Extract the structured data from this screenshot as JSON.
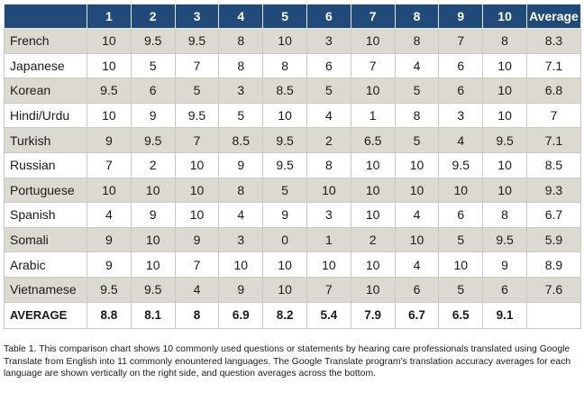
{
  "table": {
    "headers": [
      "",
      "1",
      "2",
      "3",
      "4",
      "5",
      "6",
      "7",
      "8",
      "9",
      "10",
      "Average"
    ],
    "rows": [
      {
        "language": "French",
        "scores": [
          "10",
          "9.5",
          "9.5",
          "8",
          "10",
          "3",
          "10",
          "8",
          "7",
          "8"
        ],
        "average": "8.3"
      },
      {
        "language": "Japanese",
        "scores": [
          "10",
          "5",
          "7",
          "8",
          "8",
          "6",
          "7",
          "4",
          "6",
          "10"
        ],
        "average": "7.1"
      },
      {
        "language": "Korean",
        "scores": [
          "9.5",
          "6",
          "5",
          "3",
          "8.5",
          "5",
          "10",
          "5",
          "6",
          "10"
        ],
        "average": "6.8"
      },
      {
        "language": "Hindi/Urdu",
        "scores": [
          "10",
          "9",
          "9.5",
          "5",
          "10",
          "4",
          "1",
          "8",
          "3",
          "10"
        ],
        "average": "7"
      },
      {
        "language": "Turkish",
        "scores": [
          "9",
          "9.5",
          "7",
          "8.5",
          "9.5",
          "2",
          "6.5",
          "5",
          "4",
          "9.5"
        ],
        "average": "7.1"
      },
      {
        "language": "Russian",
        "scores": [
          "7",
          "2",
          "10",
          "9",
          "9.5",
          "8",
          "10",
          "10",
          "9.5",
          "10"
        ],
        "average": "8.5"
      },
      {
        "language": "Portuguese",
        "scores": [
          "10",
          "10",
          "10",
          "8",
          "5",
          "10",
          "10",
          "10",
          "10",
          "10"
        ],
        "average": "9.3"
      },
      {
        "language": "Spanish",
        "scores": [
          "4",
          "9",
          "10",
          "4",
          "9",
          "3",
          "10",
          "4",
          "6",
          "8"
        ],
        "average": "6.7"
      },
      {
        "language": "Somali",
        "scores": [
          "9",
          "10",
          "9",
          "3",
          "0",
          "1",
          "2",
          "10",
          "5",
          "9.5"
        ],
        "average": "5.9"
      },
      {
        "language": "Arabic",
        "scores": [
          "9",
          "10",
          "7",
          "10",
          "10",
          "10",
          "10",
          "4",
          "10",
          "9"
        ],
        "average": "8.9"
      },
      {
        "language": "Vietnamese",
        "scores": [
          "9.5",
          "9.5",
          "4",
          "9",
          "10",
          "7",
          "10",
          "6",
          "5",
          "6"
        ],
        "average": "7.6"
      }
    ],
    "footer": {
      "label": "AVERAGE",
      "values": [
        "8.8",
        "8.1",
        "8",
        "6.9",
        "8.2",
        "5.4",
        "7.9",
        "6.7",
        "6.5",
        "9.1"
      ],
      "average": ""
    }
  },
  "caption": "Table 1. This comparison chart shows 10 commonly used questions or statements by hearing care professionals translated using Google Translate from English into 11 commonly enountered languages. The Google Translate program’s translation accuracy averages for each language are shown vertically on the right side, and question averages across the bottom.",
  "colors": {
    "header_bg": "#1f4a7a",
    "row_shaded": "#dcdad0",
    "row_plain": "#ffffff"
  }
}
